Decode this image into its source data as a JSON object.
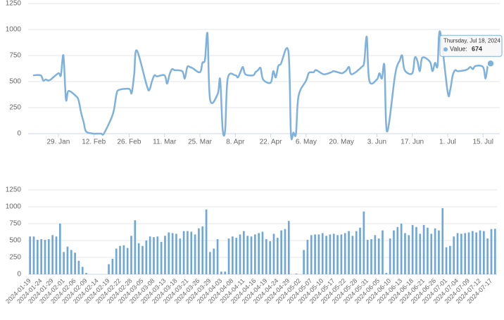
{
  "chart_data": [
    {
      "type": "line",
      "x": [
        "2024-01-19",
        "2024-01-22",
        "2024-01-23",
        "2024-01-24",
        "2024-01-25",
        "2024-01-26",
        "2024-01-29",
        "2024-01-30",
        "2024-01-31",
        "2024-02-01",
        "2024-02-02",
        "2024-02-05",
        "2024-02-06",
        "2024-02-07",
        "2024-02-08",
        "2024-02-09",
        "2024-02-12",
        "2024-02-13",
        "2024-02-14",
        "2024-02-15",
        "2024-02-16",
        "2024-02-19",
        "2024-02-20",
        "2024-02-21",
        "2024-02-22",
        "2024-02-26",
        "2024-02-27",
        "2024-02-28",
        "2024-02-29",
        "2024-03-04",
        "2024-03-05",
        "2024-03-06",
        "2024-03-07",
        "2024-03-08",
        "2024-03-11",
        "2024-03-12",
        "2024-03-13",
        "2024-03-14",
        "2024-03-15",
        "2024-03-18",
        "2024-03-19",
        "2024-03-20",
        "2024-03-21",
        "2024-03-22",
        "2024-03-25",
        "2024-03-26",
        "2024-03-27",
        "2024-03-28",
        "2024-03-29",
        "2024-04-01",
        "2024-04-02",
        "2024-04-03",
        "2024-04-04",
        "2024-04-05",
        "2024-04-08",
        "2024-04-09",
        "2024-04-10",
        "2024-04-11",
        "2024-04-12",
        "2024-04-15",
        "2024-04-16",
        "2024-04-17",
        "2024-04-18",
        "2024-04-19",
        "2024-04-22",
        "2024-04-23",
        "2024-04-24",
        "2024-04-25",
        "2024-04-26",
        "2024-04-29",
        "2024-04-30",
        "2024-05-01",
        "2024-05-02",
        "2024-05-03",
        "2024-05-06",
        "2024-05-07",
        "2024-05-08",
        "2024-05-09",
        "2024-05-10",
        "2024-05-13",
        "2024-05-16",
        "2024-05-17",
        "2024-05-20",
        "2024-05-21",
        "2024-05-22",
        "2024-05-23",
        "2024-05-24",
        "2024-05-28",
        "2024-05-29",
        "2024-05-30",
        "2024-05-31",
        "2024-06-03",
        "2024-06-04",
        "2024-06-05",
        "2024-06-06",
        "2024-06-07",
        "2024-06-10",
        "2024-06-11",
        "2024-06-12",
        "2024-06-13",
        "2024-06-14",
        "2024-06-17",
        "2024-06-18",
        "2024-06-19",
        "2024-06-20",
        "2024-06-21",
        "2024-06-24",
        "2024-06-25",
        "2024-06-26",
        "2024-06-27",
        "2024-06-28",
        "2024-07-01",
        "2024-07-02",
        "2024-07-03",
        "2024-07-04",
        "2024-07-05",
        "2024-07-08",
        "2024-07-09",
        "2024-07-10",
        "2024-07-11",
        "2024-07-12",
        "2024-07-15",
        "2024-07-16",
        "2024-07-17",
        "2024-07-18"
      ],
      "values": [
        560,
        560,
        510,
        520,
        510,
        520,
        580,
        560,
        750,
        330,
        410,
        360,
        320,
        200,
        110,
        20,
        0,
        0,
        0,
        0,
        0,
        150,
        230,
        380,
        420,
        430,
        390,
        570,
        800,
        460,
        420,
        500,
        560,
        550,
        560,
        480,
        570,
        620,
        610,
        600,
        530,
        640,
        640,
        630,
        590,
        680,
        710,
        960,
        330,
        380,
        520,
        40,
        40,
        530,
        560,
        540,
        590,
        640,
        570,
        560,
        590,
        610,
        630,
        520,
        490,
        600,
        540,
        650,
        670,
        790,
        0,
        10,
        0,
        360,
        510,
        580,
        590,
        590,
        610,
        570,
        590,
        600,
        580,
        590,
        610,
        640,
        570,
        640,
        690,
        930,
        510,
        520,
        580,
        530,
        650,
        20,
        530,
        650,
        700,
        750,
        610,
        580,
        730,
        700,
        600,
        730,
        690,
        600,
        680,
        650,
        980,
        400,
        420,
        560,
        610,
        600,
        610,
        620,
        640,
        620,
        650,
        640,
        530,
        670,
        674
      ],
      "color": "#7eb2dc",
      "xlim": [
        "2024-01-19",
        "2024-07-18"
      ],
      "xticks": [
        {
          "value": "2024-01-29",
          "label": "29. Jan"
        },
        {
          "value": "2024-02-12",
          "label": "12. Feb"
        },
        {
          "value": "2024-02-26",
          "label": "26. Feb"
        },
        {
          "value": "2024-03-11",
          "label": "11. Mar"
        },
        {
          "value": "2024-03-25",
          "label": "25. Mar"
        },
        {
          "value": "2024-04-08",
          "label": "8. Apr"
        },
        {
          "value": "2024-04-22",
          "label": "22. Apr"
        },
        {
          "value": "2024-05-06",
          "label": "6. May"
        },
        {
          "value": "2024-05-20",
          "label": "20. May"
        },
        {
          "value": "2024-06-03",
          "label": "3. Jun"
        },
        {
          "value": "2024-06-17",
          "label": "17. Jun"
        },
        {
          "value": "2024-07-01",
          "label": "1. Jul"
        },
        {
          "value": "2024-07-15",
          "label": "15. Jul"
        }
      ],
      "ylim": [
        0,
        1250
      ],
      "yticks": [
        0,
        250,
        500,
        750,
        1000,
        1250
      ],
      "grid": true,
      "tooltip": {
        "date": "Thursday, Jul 18, 2024",
        "label": "Value:",
        "value": 674
      }
    },
    {
      "type": "bar",
      "categories": [
        "2024-01-19",
        null,
        null,
        "2024-01-24",
        null,
        null,
        "2024-01-29",
        null,
        null,
        "2024-02-01",
        null,
        null,
        "2024-02-06",
        null,
        null,
        "2024-02-09",
        null,
        null,
        "2024-02-14",
        null,
        null,
        "2024-02-19",
        null,
        null,
        "2024-02-22",
        null,
        null,
        "2024-02-28",
        null,
        null,
        "2024-03-05",
        null,
        null,
        "2024-03-08",
        null,
        null,
        "2024-03-13",
        null,
        null,
        "2024-03-18",
        null,
        null,
        "2024-03-21",
        null,
        null,
        "2024-03-26",
        null,
        null,
        "2024-03-29",
        null,
        null,
        "2024-04-03",
        null,
        null,
        "2024-04-08",
        null,
        null,
        "2024-04-11",
        null,
        null,
        "2024-04-16",
        null,
        null,
        "2024-04-19",
        null,
        null,
        "2024-04-24",
        null,
        null,
        "2024-04-29",
        null,
        null,
        "2024-05-02",
        null,
        null,
        "2024-05-07",
        null,
        null,
        "2024-05-10",
        null,
        null,
        "2024-05-17",
        null,
        null,
        "2024-05-22",
        null,
        null,
        "2024-05-28",
        null,
        null,
        "2024-05-31",
        null,
        null,
        "2024-06-05",
        null,
        null,
        "2024-06-10",
        null,
        null,
        "2024-06-13",
        null,
        null,
        "2024-06-18",
        null,
        null,
        "2024-06-21",
        null,
        null,
        "2024-06-26",
        null,
        null,
        "2024-07-01",
        null,
        null,
        "2024-07-04",
        null,
        null,
        "2024-07-09",
        null,
        null,
        "2024-07-12",
        null,
        null,
        "2024-07-17",
        null
      ],
      "values": [
        560,
        560,
        510,
        520,
        510,
        520,
        580,
        560,
        750,
        330,
        410,
        360,
        320,
        200,
        110,
        20,
        0,
        0,
        0,
        0,
        0,
        150,
        230,
        380,
        420,
        430,
        390,
        570,
        800,
        460,
        420,
        500,
        560,
        550,
        560,
        480,
        570,
        620,
        610,
        600,
        530,
        640,
        640,
        630,
        590,
        680,
        710,
        960,
        330,
        380,
        520,
        40,
        40,
        530,
        560,
        540,
        590,
        640,
        570,
        560,
        590,
        610,
        630,
        520,
        490,
        600,
        540,
        650,
        670,
        790,
        0,
        10,
        0,
        360,
        510,
        580,
        590,
        590,
        610,
        570,
        590,
        600,
        580,
        590,
        610,
        640,
        570,
        640,
        690,
        930,
        510,
        520,
        580,
        530,
        650,
        20,
        530,
        650,
        700,
        750,
        610,
        580,
        730,
        700,
        600,
        730,
        690,
        600,
        680,
        650,
        980,
        400,
        420,
        560,
        610,
        600,
        610,
        620,
        640,
        620,
        650,
        640,
        530,
        670,
        674
      ],
      "color": "#6fa7d6",
      "ylim": [
        0,
        1250
      ],
      "yticks": [
        0,
        250,
        500,
        750,
        1000,
        1250
      ],
      "grid": true
    }
  ]
}
